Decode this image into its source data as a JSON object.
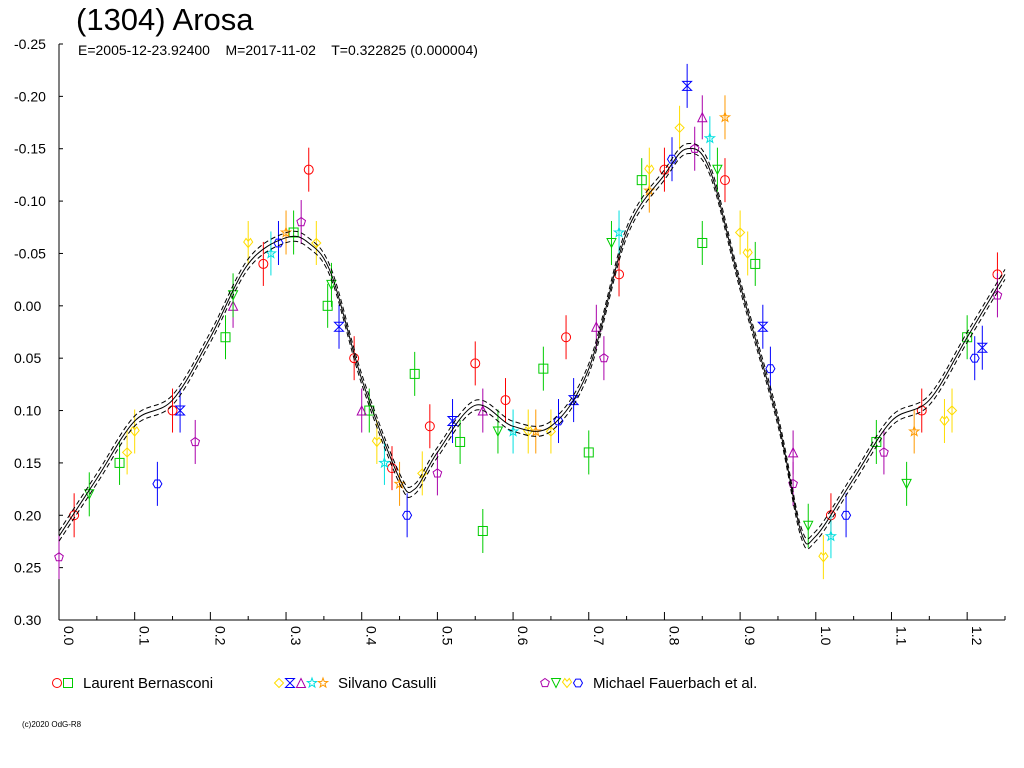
{
  "chart_data": {
    "type": "scatter",
    "title": "(1304) Arosa",
    "subtitle": "E=2005-12-23.92400    M=2017-11-02    T=0.322825 (0.000004)",
    "xlabel": "",
    "ylabel": "",
    "xlim": [
      0.0,
      1.25
    ],
    "ylim": [
      -0.25,
      0.3
    ],
    "y_inverted": true,
    "grid": false,
    "x_ticks": [
      0.0,
      0.1,
      0.2,
      0.3,
      0.4,
      0.5,
      0.6,
      0.7,
      0.8,
      0.9,
      1.0,
      1.1,
      1.2
    ],
    "x_tick_labels": [
      "0.0",
      "0.1",
      "0.2",
      "0.3",
      "0.4",
      "0.5",
      "0.6",
      "0.7",
      "0.8",
      "0.9",
      "1.0",
      "1.1",
      "1.2"
    ],
    "y_ticks": [
      -0.25,
      -0.2,
      -0.15,
      -0.1,
      -0.05,
      0.0,
      0.05,
      0.1,
      0.15,
      0.2,
      0.25,
      0.3
    ],
    "y_tick_labels": [
      "-0.25",
      "-0.20",
      "-0.15",
      "-0.10",
      "-0.05",
      "0.00",
      "0.05",
      "0.10",
      "0.15",
      "0.20",
      "0.25",
      "0.30"
    ],
    "legend_placement": "bottom",
    "fit_curve": {
      "x": [
        0.0,
        0.05,
        0.1,
        0.15,
        0.2,
        0.25,
        0.3,
        0.33,
        0.36,
        0.4,
        0.45,
        0.47,
        0.5,
        0.55,
        0.6,
        0.65,
        0.7,
        0.75,
        0.8,
        0.83,
        0.86,
        0.9,
        0.95,
        0.98,
        1.0,
        1.05,
        1.1,
        1.15,
        1.2,
        1.25
      ],
      "y": [
        0.22,
        0.165,
        0.11,
        0.09,
        0.03,
        -0.04,
        -0.065,
        -0.06,
        -0.03,
        0.07,
        0.165,
        0.175,
        0.14,
        0.095,
        0.115,
        0.115,
        0.06,
        -0.07,
        -0.125,
        -0.15,
        -0.13,
        -0.02,
        0.11,
        0.215,
        0.22,
        0.165,
        0.11,
        0.09,
        0.03,
        -0.03
      ]
    },
    "series": [
      {
        "name": "Laurent Bernasconi",
        "color": "#ff0000",
        "markers": [
          "circle",
          "square"
        ],
        "marker_colors": [
          "#ff0000",
          "#00cc00"
        ],
        "x": [
          0.02,
          0.08,
          0.15,
          0.22,
          0.27,
          0.31,
          0.33,
          0.355,
          0.39,
          0.41,
          0.44,
          0.47,
          0.49,
          0.53,
          0.55,
          0.56,
          0.59,
          0.64,
          0.67,
          0.7,
          0.74,
          0.77,
          0.8,
          0.85,
          0.88,
          0.92,
          1.02,
          1.08,
          1.14,
          1.2,
          1.24
        ],
        "y": [
          0.2,
          0.15,
          0.1,
          0.03,
          -0.04,
          -0.07,
          -0.13,
          0.0,
          0.05,
          0.1,
          0.155,
          0.065,
          0.115,
          0.13,
          0.055,
          0.215,
          0.09,
          0.06,
          0.03,
          0.14,
          -0.03,
          -0.12,
          -0.13,
          -0.06,
          -0.12,
          -0.04,
          0.2,
          0.13,
          0.1,
          0.03,
          -0.03
        ]
      },
      {
        "name": "Silvano Casulli",
        "color": "#ffdd00",
        "markers": [
          "diamond",
          "hourglass",
          "triangle-up",
          "star",
          "cross-star"
        ],
        "marker_colors": [
          "#ffdd00",
          "#0000ff",
          "#aa00aa",
          "#00e0e0",
          "#ff9900"
        ],
        "x": [
          0.09,
          0.16,
          0.23,
          0.28,
          0.3,
          0.34,
          0.37,
          0.4,
          0.43,
          0.45,
          0.48,
          0.52,
          0.56,
          0.6,
          0.63,
          0.65,
          0.68,
          0.71,
          0.74,
          0.78,
          0.82,
          0.83,
          0.85,
          0.86,
          0.88,
          0.9,
          0.93,
          0.97,
          1.02,
          1.13,
          1.18,
          1.22
        ],
        "y": [
          0.14,
          0.1,
          0.0,
          -0.05,
          -0.07,
          -0.06,
          0.02,
          0.1,
          0.15,
          0.17,
          0.16,
          0.11,
          0.1,
          0.12,
          0.12,
          0.12,
          0.09,
          0.02,
          -0.07,
          -0.11,
          -0.17,
          -0.21,
          -0.18,
          -0.16,
          -0.18,
          -0.07,
          0.02,
          0.14,
          0.22,
          0.12,
          0.1,
          0.04
        ]
      },
      {
        "name": "Michael Fauerbach et al.",
        "color": "#0000ff",
        "markers": [
          "pentagon",
          "triangle-down",
          "heart",
          "hexagon"
        ],
        "marker_colors": [
          "#aa00aa",
          "#00cc00",
          "#ffdd00",
          "#0000ff"
        ],
        "x": [
          0.0,
          0.04,
          0.1,
          0.13,
          0.18,
          0.23,
          0.25,
          0.29,
          0.32,
          0.36,
          0.42,
          0.46,
          0.5,
          0.58,
          0.62,
          0.66,
          0.72,
          0.73,
          0.78,
          0.81,
          0.84,
          0.87,
          0.91,
          0.94,
          0.97,
          0.99,
          1.01,
          1.04,
          1.09,
          1.12,
          1.17,
          1.21,
          1.24
        ],
        "y": [
          0.24,
          0.18,
          0.12,
          0.17,
          0.13,
          -0.01,
          -0.06,
          -0.06,
          -0.08,
          -0.02,
          0.13,
          0.2,
          0.16,
          0.12,
          0.12,
          0.11,
          0.05,
          -0.06,
          -0.13,
          -0.14,
          -0.15,
          -0.13,
          -0.05,
          0.06,
          0.17,
          0.21,
          0.24,
          0.2,
          0.14,
          0.17,
          0.11,
          0.05,
          -0.01
        ]
      }
    ],
    "copyright": "(c)2020 OdG-R8"
  }
}
